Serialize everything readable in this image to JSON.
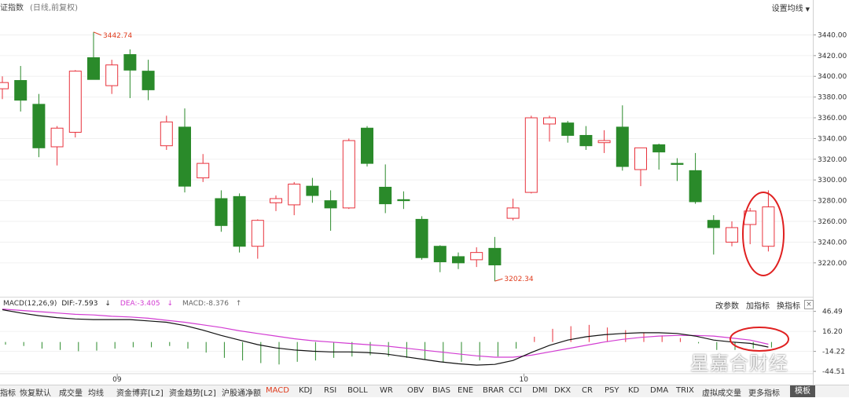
{
  "header": {
    "title": "证指数",
    "subtitle": "(日线,前复权)",
    "settings_label": "设置均线"
  },
  "colors": {
    "up": "#e8323c",
    "down": "#2a8a2a",
    "dif": "#111111",
    "dea": "#d23cd2",
    "annotation": "#e03c1e"
  },
  "chart_data": [
    {
      "type": "candlestick",
      "y_ticks": [
        "3440.00",
        "3420.00",
        "3400.00",
        "3380.00",
        "3360.00",
        "3340.00",
        "3320.00",
        "3300.00",
        "3280.00",
        "3260.00",
        "3240.00",
        "3220.00"
      ],
      "ylim": [
        3207,
        3457
      ],
      "annotations": {
        "high": "3442.74",
        "low": "3202.34"
      },
      "candles": [
        {
          "o": 3388,
          "c": 3394,
          "h": 3400,
          "l": 3378
        },
        {
          "o": 3396,
          "c": 3377,
          "h": 3410,
          "l": 3366
        },
        {
          "o": 3373,
          "c": 3331,
          "h": 3383,
          "l": 3322
        },
        {
          "o": 3332,
          "c": 3350,
          "h": 3352,
          "l": 3314
        },
        {
          "o": 3346,
          "c": 3405,
          "h": 3406,
          "l": 3341
        },
        {
          "o": 3418,
          "c": 3397,
          "h": 3442.74,
          "l": 3397
        },
        {
          "o": 3391,
          "c": 3411,
          "h": 3416,
          "l": 3383
        },
        {
          "o": 3421,
          "c": 3406,
          "h": 3426,
          "l": 3379
        },
        {
          "o": 3405,
          "c": 3387,
          "h": 3416,
          "l": 3377
        },
        {
          "o": 3333,
          "c": 3356,
          "h": 3362,
          "l": 3329
        },
        {
          "o": 3351,
          "c": 3294,
          "h": 3369,
          "l": 3288
        },
        {
          "o": 3302,
          "c": 3316,
          "h": 3325,
          "l": 3298
        },
        {
          "o": 3282,
          "c": 3256,
          "h": 3290,
          "l": 3250
        },
        {
          "o": 3284,
          "c": 3236,
          "h": 3287,
          "l": 3230
        },
        {
          "o": 3236,
          "c": 3261,
          "h": 3262,
          "l": 3224
        },
        {
          "o": 3278,
          "c": 3282,
          "h": 3285,
          "l": 3270
        },
        {
          "o": 3276,
          "c": 3296,
          "h": 3298,
          "l": 3266
        },
        {
          "o": 3294,
          "c": 3285,
          "h": 3302,
          "l": 3278
        },
        {
          "o": 3280,
          "c": 3273,
          "h": 3290,
          "l": 3251
        },
        {
          "o": 3273,
          "c": 3338,
          "h": 3340,
          "l": 3272
        },
        {
          "o": 3350,
          "c": 3316,
          "h": 3352,
          "l": 3313
        },
        {
          "o": 3293,
          "c": 3277,
          "h": 3315,
          "l": 3268
        },
        {
          "o": 3281,
          "c": 3280,
          "h": 3289,
          "l": 3272
        },
        {
          "o": 3262,
          "c": 3225,
          "h": 3265,
          "l": 3223
        },
        {
          "o": 3236,
          "c": 3221,
          "h": 3237,
          "l": 3211
        },
        {
          "o": 3226,
          "c": 3220,
          "h": 3230,
          "l": 3214
        },
        {
          "o": 3223,
          "c": 3230,
          "h": 3235,
          "l": 3216
        },
        {
          "o": 3234,
          "c": 3218,
          "h": 3245,
          "l": 3202.34
        },
        {
          "o": 3263,
          "c": 3273,
          "h": 3282,
          "l": 3261
        },
        {
          "o": 3288,
          "c": 3360,
          "h": 3362,
          "l": 3287
        },
        {
          "o": 3354,
          "c": 3360,
          "h": 3362,
          "l": 3337
        },
        {
          "o": 3355,
          "c": 3343,
          "h": 3357,
          "l": 3336
        },
        {
          "o": 3343,
          "c": 3333,
          "h": 3352,
          "l": 3329
        },
        {
          "o": 3336,
          "c": 3338,
          "h": 3348,
          "l": 3326
        },
        {
          "o": 3351,
          "c": 3313,
          "h": 3372,
          "l": 3309
        },
        {
          "o": 3310,
          "c": 3331,
          "h": 3331,
          "l": 3294
        },
        {
          "o": 3334,
          "c": 3327,
          "h": 3335,
          "l": 3310
        },
        {
          "o": 3316,
          "c": 3315,
          "h": 3321,
          "l": 3299
        },
        {
          "o": 3309,
          "c": 3279,
          "h": 3326,
          "l": 3277
        },
        {
          "o": 3261,
          "c": 3254,
          "h": 3266,
          "l": 3228
        },
        {
          "o": 3240,
          "c": 3254,
          "h": 3260,
          "l": 3236
        },
        {
          "o": 3257,
          "c": 3270,
          "h": 3273,
          "l": 3238
        },
        {
          "o": 3236,
          "c": 3274,
          "h": 3290,
          "l": 3231
        }
      ]
    },
    {
      "type": "macd",
      "indicator": "MACD(12,26,9)",
      "dif_label": "DIF:-7.593",
      "dea_label": "DEA:-3.405",
      "macd_label": "MACD:-8.376",
      "y_ticks": [
        "46.49",
        "16.20",
        "-14.22",
        "-44.51"
      ],
      "ylim": [
        -48,
        52
      ],
      "x_labels": [
        "09",
        "10"
      ],
      "dif": [
        49,
        44,
        40,
        37,
        35,
        34,
        34,
        34,
        32,
        30,
        25,
        18,
        10,
        3,
        -4,
        -9,
        -12,
        -14,
        -15,
        -15,
        -16,
        -18,
        -22,
        -26,
        -30,
        -33,
        -35,
        -34,
        -28,
        -16,
        -5,
        3,
        8,
        11,
        13,
        14,
        14,
        13,
        9,
        3,
        0,
        -2,
        -7.593
      ],
      "dea": [
        50,
        48,
        46,
        44,
        42,
        41,
        39,
        38,
        36,
        33,
        30,
        26,
        22,
        17,
        13,
        9,
        5,
        2,
        0,
        -2,
        -4,
        -6,
        -9,
        -12,
        -15,
        -18,
        -21,
        -23,
        -23,
        -20,
        -15,
        -10,
        -5,
        0,
        4,
        7,
        9,
        10,
        10,
        9,
        6,
        3,
        -3.405
      ],
      "macd_hist": [
        -4,
        -6,
        -10,
        -12,
        -14,
        -13,
        -10,
        -8,
        -8,
        -6,
        -10,
        -16,
        -24,
        -28,
        -32,
        -34,
        -30,
        -28,
        -24,
        -22,
        -20,
        -22,
        -24,
        -26,
        -30,
        -30,
        -28,
        -22,
        -10,
        8,
        20,
        24,
        26,
        22,
        18,
        14,
        10,
        6,
        -2,
        -12,
        -12,
        -10,
        -8.376
      ]
    }
  ],
  "macd_toolbar": {
    "edit_params": "改参数",
    "add_indicator": "加指标",
    "switch_indicator": "换指标",
    "close": "×"
  },
  "tabs": [
    "指标",
    "恢复默认",
    "成交量",
    "均线",
    "资金博弈[L2]",
    "资金趋势[L2]",
    "沪股通净额",
    "MACD",
    "KDJ",
    "RSI",
    "BOLL",
    "WR",
    "OBV",
    "BIAS",
    "ENE",
    "BRAR",
    "CCI",
    "DMI",
    "DKX",
    "CR",
    "PSY",
    "KD",
    "DMA",
    "TRIX",
    "虚拟成交量",
    "更多指标",
    "模板"
  ],
  "active_tab": "MACD",
  "watermark": "星嘉合财经"
}
